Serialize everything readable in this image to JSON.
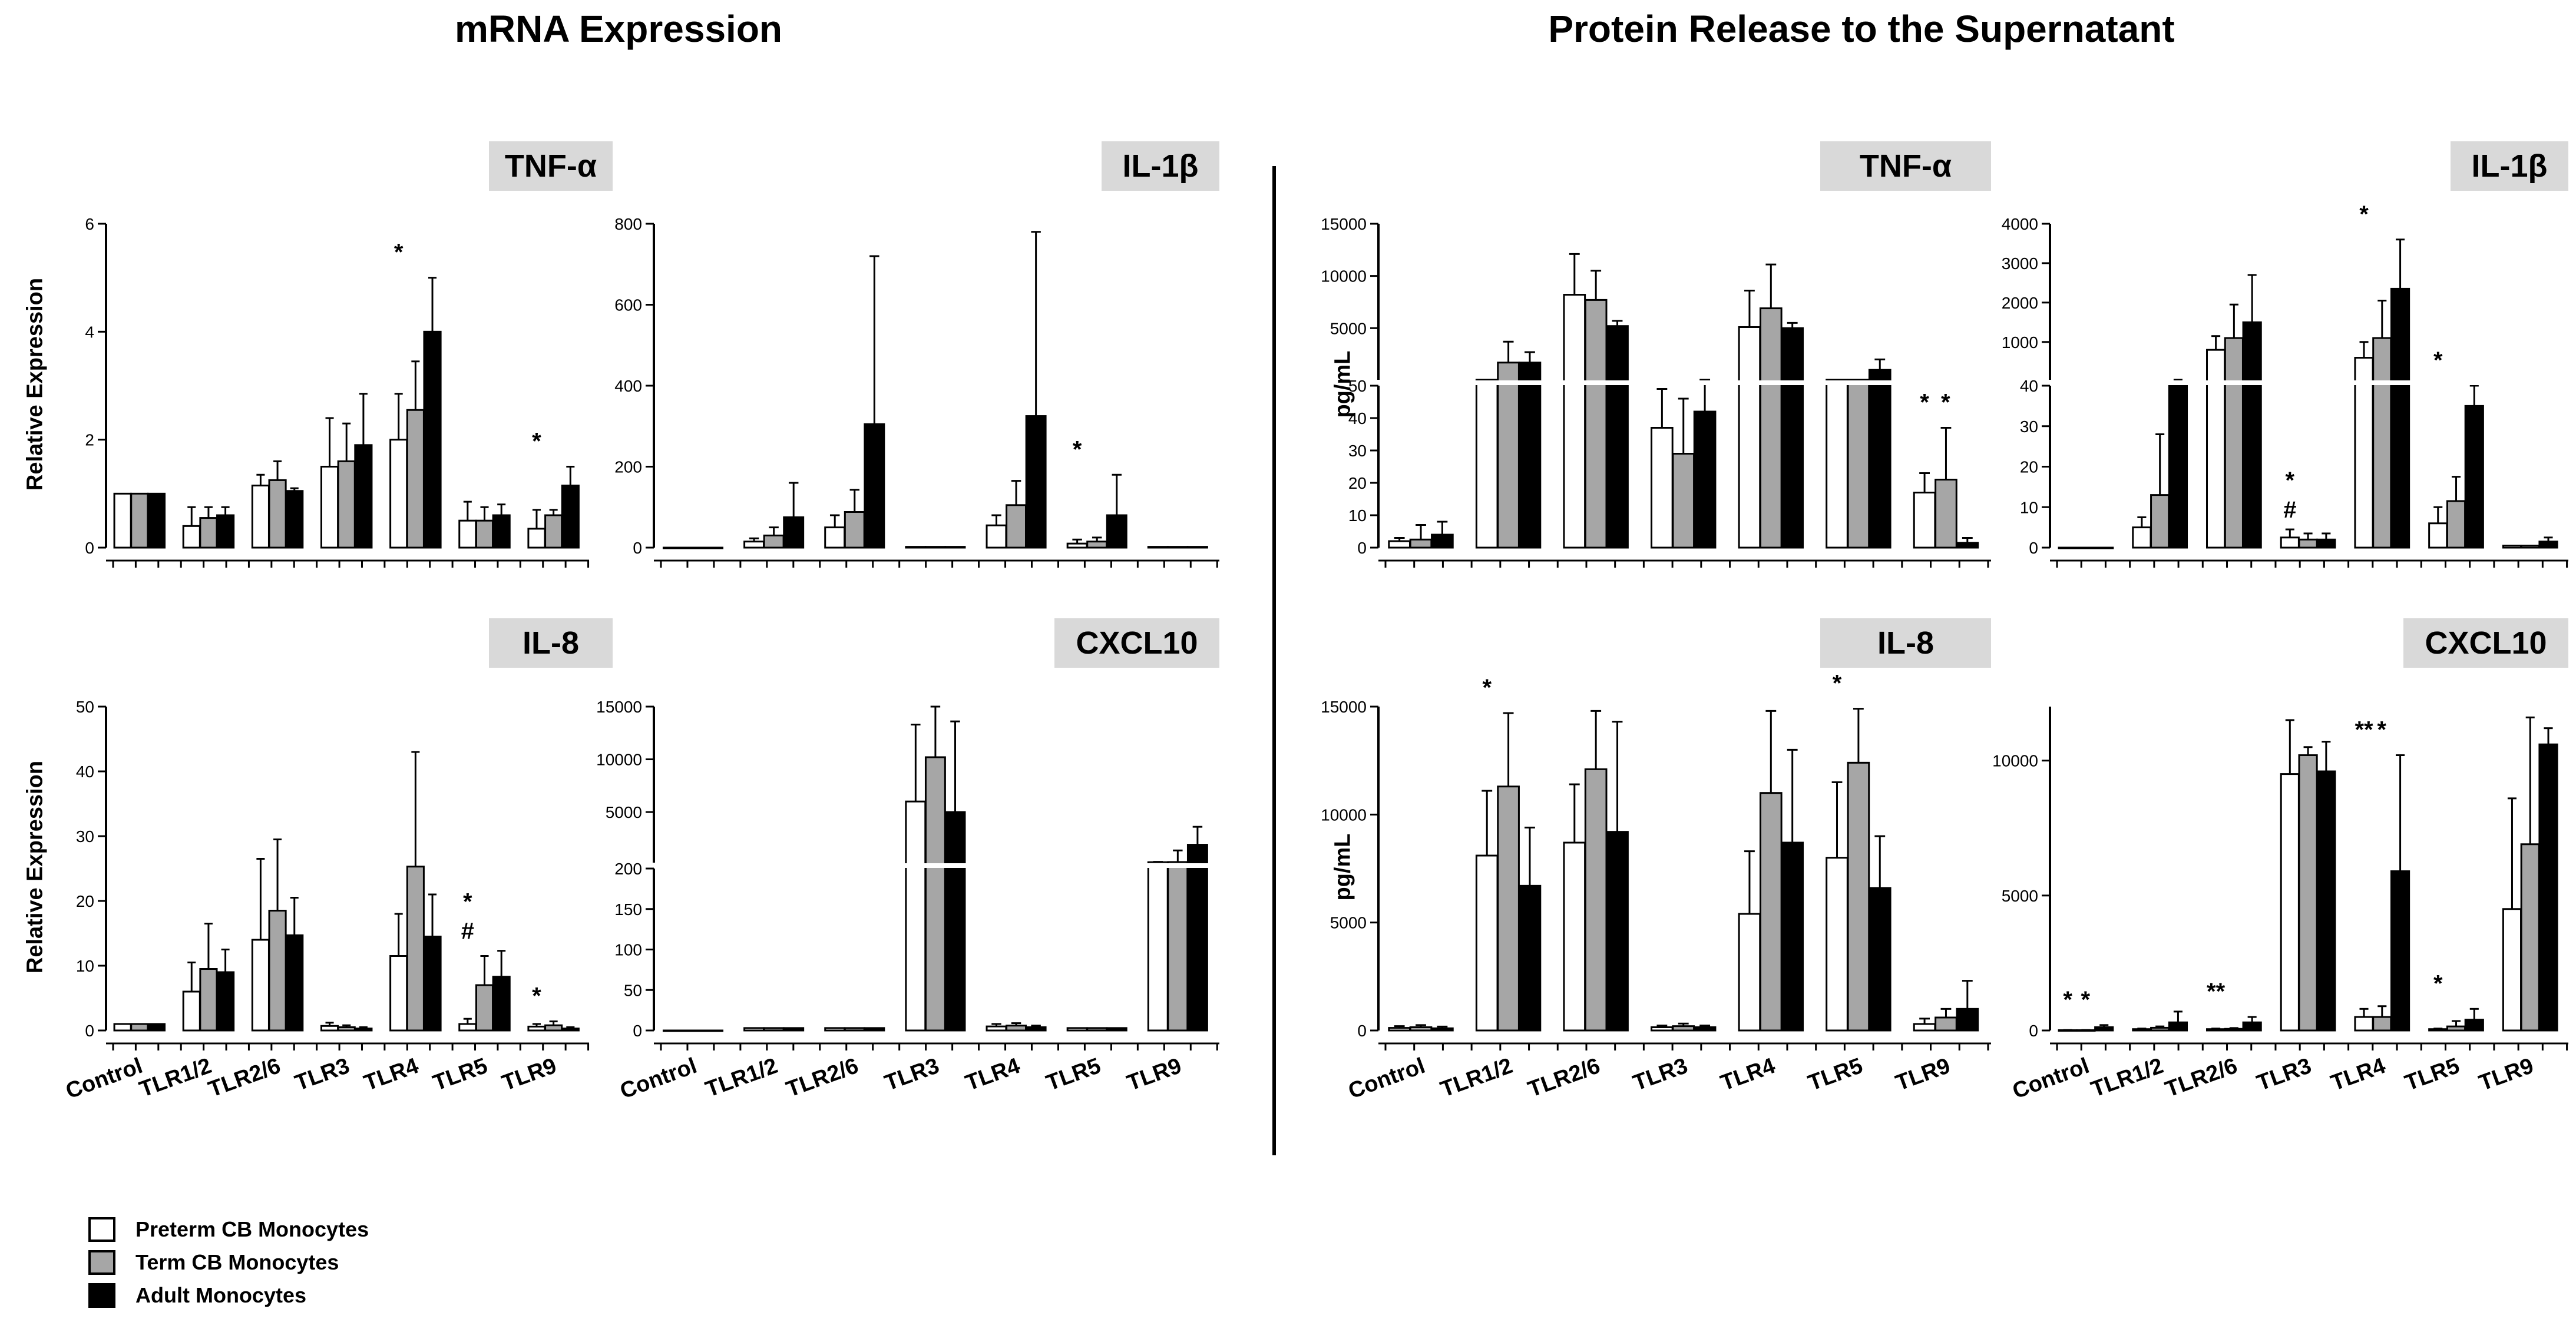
{
  "sections": {
    "mrna": "mRNA Expression",
    "protein": "Protein Release to the Supernatant"
  },
  "categories": [
    "Control",
    "TLR1/2",
    "TLR2/6",
    "TLR3",
    "TLR4",
    "TLR5",
    "TLR9"
  ],
  "legend": [
    {
      "label": "Preterm CB Monocytes",
      "color": "#ffffff"
    },
    {
      "label": "Term CB Monocytes",
      "color": "#a6a6a6"
    },
    {
      "label": "Adult Monocytes",
      "color": "#000000"
    }
  ],
  "chart_data": [
    {
      "id": "mrna-tnf",
      "type": "bar",
      "title": "TNF-α",
      "ylabel": "Relative Expression",
      "ylim": [
        0,
        6
      ],
      "ticks": [
        "0",
        "2",
        "4",
        "6"
      ],
      "series": [
        {
          "name": "Preterm CB Monocytes",
          "values": [
            1,
            0.4,
            1.15,
            1.5,
            2,
            0.5,
            0.35
          ],
          "errors": [
            0,
            0.35,
            0.2,
            0.9,
            0.85,
            0.35,
            0.35
          ]
        },
        {
          "name": "Term CB Monocytes",
          "values": [
            1,
            0.55,
            1.25,
            1.6,
            2.55,
            0.5,
            0.6
          ],
          "errors": [
            0,
            0.2,
            0.35,
            0.7,
            0.9,
            0.25,
            0.1
          ]
        },
        {
          "name": "Adult Monocytes",
          "values": [
            1,
            0.6,
            1.05,
            1.9,
            4,
            0.6,
            1.15
          ],
          "errors": [
            0,
            0.15,
            0.05,
            0.95,
            1,
            0.2,
            0.35
          ]
        }
      ],
      "annotations": [
        {
          "category": "TLR4",
          "text": "*"
        },
        {
          "category": "TLR9",
          "text": "*"
        }
      ]
    },
    {
      "id": "mrna-il1b",
      "type": "bar",
      "title": "IL-1β",
      "ylabel": "",
      "ylim": [
        0,
        800
      ],
      "ticks": [
        "0",
        "200",
        "400",
        "600",
        "800"
      ],
      "series": [
        {
          "name": "Preterm CB Monocytes",
          "values": [
            0,
            15,
            50,
            2,
            55,
            10,
            2
          ],
          "errors": [
            0,
            8,
            30,
            0,
            25,
            10,
            0
          ]
        },
        {
          "name": "Term CB Monocytes",
          "values": [
            0,
            30,
            88,
            2,
            105,
            15,
            2
          ],
          "errors": [
            0,
            20,
            55,
            0,
            60,
            10,
            0
          ]
        },
        {
          "name": "Adult Monocytes",
          "values": [
            0,
            75,
            305,
            2,
            325,
            80,
            2
          ],
          "errors": [
            0,
            85,
            415,
            0,
            455,
            100,
            0
          ]
        }
      ],
      "annotations": [
        {
          "category": "TLR5",
          "text": "*"
        }
      ]
    },
    {
      "id": "mrna-il8",
      "type": "bar",
      "title": "IL-8",
      "ylabel": "Relative Expression",
      "ylim": [
        0,
        50
      ],
      "ticks": [
        "0",
        "10",
        "20",
        "30",
        "40",
        "50"
      ],
      "series": [
        {
          "name": "Preterm CB Monocytes",
          "values": [
            1,
            6,
            14,
            0.7,
            11.5,
            1,
            0.6
          ],
          "errors": [
            0,
            4.5,
            12.5,
            0.5,
            6.5,
            0.8,
            0.4
          ]
        },
        {
          "name": "Term CB Monocytes",
          "values": [
            1,
            9.5,
            18.5,
            0.5,
            25.3,
            7,
            0.8
          ],
          "errors": [
            0,
            7,
            11,
            0.3,
            17.7,
            4.5,
            0.6
          ]
        },
        {
          "name": "Adult Monocytes",
          "values": [
            1,
            9,
            14.7,
            0.3,
            14.5,
            8.3,
            0.3
          ],
          "errors": [
            0,
            3.5,
            5.8,
            0.2,
            6.5,
            4,
            0.2
          ]
        }
      ],
      "annotations": [
        {
          "category": "TLR5",
          "text": "*"
        },
        {
          "category": "TLR5",
          "text": "#"
        },
        {
          "category": "TLR9",
          "text": "*"
        }
      ]
    },
    {
      "id": "mrna-cxcl10",
      "type": "bar",
      "title": "CXCL10",
      "ylabel": "",
      "broken": true,
      "lower": {
        "max": 200,
        "ticks": [
          "0",
          "50",
          "100",
          "150",
          "200"
        ],
        "values": [
          0,
          50,
          100,
          150,
          200
        ]
      },
      "upper": {
        "min": 200,
        "max": 15000,
        "ticks": [
          "5000",
          "10000",
          "15000"
        ],
        "values": [
          5000,
          10000,
          15000
        ]
      },
      "series": [
        {
          "name": "Preterm CB Monocytes",
          "values": [
            0,
            3,
            3,
            6000,
            5,
            3,
            245
          ],
          "errors": [
            0,
            0,
            0,
            7300,
            3,
            0,
            30
          ]
        },
        {
          "name": "Term CB Monocytes",
          "values": [
            0,
            3,
            3,
            10200,
            6,
            3,
            260
          ],
          "errors": [
            0,
            0,
            0,
            4800,
            3,
            0,
            1100
          ]
        },
        {
          "name": "Adult Monocytes",
          "values": [
            0,
            3,
            3,
            5000,
            4,
            3,
            1900
          ],
          "errors": [
            0,
            0,
            0,
            8600,
            2,
            0,
            1700
          ]
        }
      ],
      "annotations": []
    },
    {
      "id": "protein-tnf",
      "type": "bar",
      "title": "TNF-α",
      "ylabel": "pg/mL",
      "broken": true,
      "lower": {
        "max": 50,
        "ticks": [
          "0",
          "10",
          "20",
          "30",
          "40",
          "50"
        ],
        "values": [
          0,
          10,
          20,
          30,
          40,
          50
        ]
      },
      "upper": {
        "min": 50,
        "max": 15000,
        "ticks": [
          "5000",
          "10000",
          "15000"
        ],
        "values": [
          5000,
          10000,
          15000
        ]
      },
      "series": [
        {
          "name": "Preterm CB Monocytes",
          "values": [
            2,
            51,
            8200,
            37,
            5100,
            51,
            17
          ],
          "errors": [
            1,
            1,
            3900,
            12,
            3500,
            1,
            6
          ]
        },
        {
          "name": "Term CB Monocytes",
          "values": [
            2.5,
            1700,
            7700,
            29,
            6900,
            51,
            21
          ],
          "errors": [
            4.5,
            2000,
            2800,
            17,
            4200,
            1,
            16
          ]
        },
        {
          "name": "Adult Monocytes",
          "values": [
            4,
            1700,
            5200,
            42,
            5000,
            1000,
            1.5
          ],
          "errors": [
            4,
            1000,
            500,
            10,
            500,
            1000,
            1.5
          ]
        }
      ],
      "annotations": [
        {
          "category": "TLR9",
          "text": "*"
        },
        {
          "category": "TLR9",
          "text": "*"
        }
      ]
    },
    {
      "id": "protein-il1b",
      "type": "bar",
      "title": "IL-1β",
      "ylabel": "",
      "broken": true,
      "lower": {
        "max": 40,
        "ticks": [
          "0",
          "10",
          "20",
          "30",
          "40"
        ],
        "values": [
          0,
          10,
          20,
          30,
          40
        ]
      },
      "upper": {
        "min": 40,
        "max": 4000,
        "ticks": [
          "1000",
          "2000",
          "3000",
          "4000"
        ],
        "values": [
          1000,
          2000,
          3000,
          4000
        ]
      },
      "series": [
        {
          "name": "Preterm CB Monocytes",
          "values": [
            0,
            5,
            800,
            2.5,
            600,
            6,
            0.5
          ],
          "errors": [
            0,
            2.5,
            350,
            2,
            400,
            4,
            0
          ]
        },
        {
          "name": "Term CB Monocytes",
          "values": [
            0,
            13,
            1100,
            2,
            1100,
            11.5,
            0.5
          ],
          "errors": [
            0,
            15,
            850,
            1.5,
            950,
            6,
            0
          ]
        },
        {
          "name": "Adult Monocytes",
          "values": [
            0,
            40,
            1500,
            2,
            2350,
            35,
            1.5
          ],
          "errors": [
            0,
            0.3,
            1200,
            1.5,
            1250,
            5,
            1
          ]
        }
      ],
      "annotations": [
        {
          "category": "TLR3",
          "text": "*"
        },
        {
          "category": "TLR3",
          "text": "#"
        },
        {
          "category": "TLR4",
          "text": "*"
        },
        {
          "category": "TLR5",
          "text": "*"
        }
      ]
    },
    {
      "id": "protein-il8",
      "type": "bar",
      "title": "IL-8",
      "ylabel": "pg/mL",
      "ylim": [
        0,
        15000
      ],
      "ticks": [
        "0",
        "5000",
        "10000",
        "15000"
      ],
      "series": [
        {
          "name": "Preterm CB Monocytes",
          "values": [
            120,
            8100,
            8700,
            150,
            5400,
            8000,
            300
          ],
          "errors": [
            80,
            3000,
            2700,
            80,
            2900,
            3500,
            250
          ]
        },
        {
          "name": "Term CB Monocytes",
          "values": [
            150,
            11300,
            12100,
            200,
            11000,
            12400,
            600
          ],
          "errors": [
            100,
            3400,
            2700,
            120,
            3800,
            2500,
            400
          ]
        },
        {
          "name": "Adult Monocytes",
          "values": [
            100,
            6700,
            9200,
            150,
            8700,
            6600,
            1000
          ],
          "errors": [
            80,
            2700,
            5100,
            80,
            4300,
            2400,
            1300
          ]
        }
      ],
      "annotations": [
        {
          "category": "TLR1/2",
          "text": "*"
        },
        {
          "category": "TLR5",
          "text": "*"
        }
      ]
    },
    {
      "id": "protein-cxcl10",
      "type": "bar",
      "title": "CXCL10",
      "ylabel": "",
      "ylim": [
        0,
        12000
      ],
      "ticks": [
        "0",
        "5000",
        "10000"
      ],
      "series": [
        {
          "name": "Preterm CB Monocytes",
          "values": [
            10,
            50,
            50,
            9500,
            500,
            50,
            4500
          ],
          "errors": [
            5,
            20,
            20,
            2000,
            300,
            20,
            4100
          ]
        },
        {
          "name": "Term CB Monocytes",
          "values": [
            10,
            100,
            60,
            10200,
            500,
            150,
            6900
          ],
          "errors": [
            5,
            50,
            30,
            300,
            400,
            200,
            4700
          ]
        },
        {
          "name": "Adult Monocytes",
          "values": [
            120,
            300,
            300,
            9600,
            5900,
            400,
            10600
          ],
          "errors": [
            80,
            400,
            200,
            1100,
            4300,
            400,
            600
          ]
        }
      ],
      "annotations": [
        {
          "category": "Control",
          "text": "*"
        },
        {
          "category": "Control",
          "text": "*"
        },
        {
          "category": "TLR2/6",
          "text": "**"
        },
        {
          "category": "TLR4",
          "text": "**"
        },
        {
          "category": "TLR4",
          "text": "*"
        },
        {
          "category": "TLR5",
          "text": "*"
        }
      ]
    }
  ]
}
